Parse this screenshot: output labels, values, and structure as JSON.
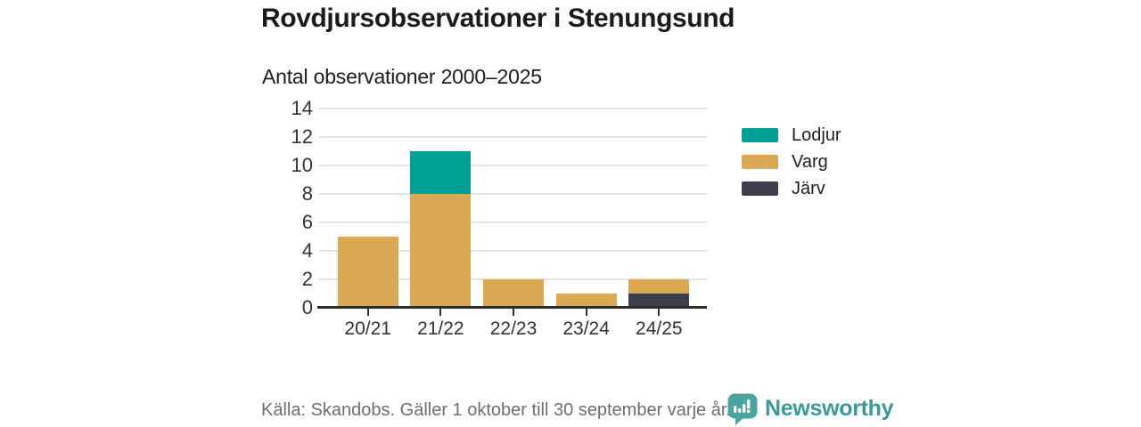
{
  "header": {
    "title": "Rovdjursobservationer i Stenungsund",
    "subtitle": "Antal observationer 2000–2025"
  },
  "chart_data": {
    "type": "bar",
    "stacked": true,
    "title": "Rovdjursobservationer i Stenungsund",
    "subtitle": "Antal observationer 2000–2025",
    "categories": [
      "20/21",
      "21/22",
      "22/23",
      "23/24",
      "24/25"
    ],
    "series": [
      {
        "name": "Lodjur",
        "color": "#00a096",
        "values": [
          0,
          3,
          0,
          0,
          0
        ]
      },
      {
        "name": "Varg",
        "color": "#dba954",
        "values": [
          5,
          8,
          2,
          1,
          1
        ]
      },
      {
        "name": "Järv",
        "color": "#3e3d4c",
        "values": [
          0,
          0,
          0,
          0,
          1
        ]
      }
    ],
    "stack_order_bottom_to_top": [
      "Järv",
      "Varg",
      "Lodjur"
    ],
    "totals_by_category": [
      5,
      11,
      2,
      1,
      2
    ],
    "ylim": [
      0,
      14
    ],
    "yticks": [
      0,
      2,
      4,
      6,
      8,
      10,
      12,
      14
    ],
    "xlabel": "",
    "ylabel": "",
    "grid": "horizontal",
    "legend_position": "right",
    "legend": [
      "Lodjur",
      "Varg",
      "Järv"
    ]
  },
  "footer": {
    "source": "Källa: Skandobs. Gäller 1 oktober till 30 september varje år.",
    "brand": "Newsworthy"
  },
  "colors": {
    "lodjur": "#00a096",
    "varg": "#dba954",
    "jarv": "#3e3d4c",
    "gridline": "#e4e4e4",
    "axis": "#2d2d2d",
    "axis_text": "#333333",
    "title_text": "#1b1b1b",
    "source_text": "#6e6e6e",
    "brand_teal": "#379c97",
    "logo_teal": "#48a49c"
  }
}
